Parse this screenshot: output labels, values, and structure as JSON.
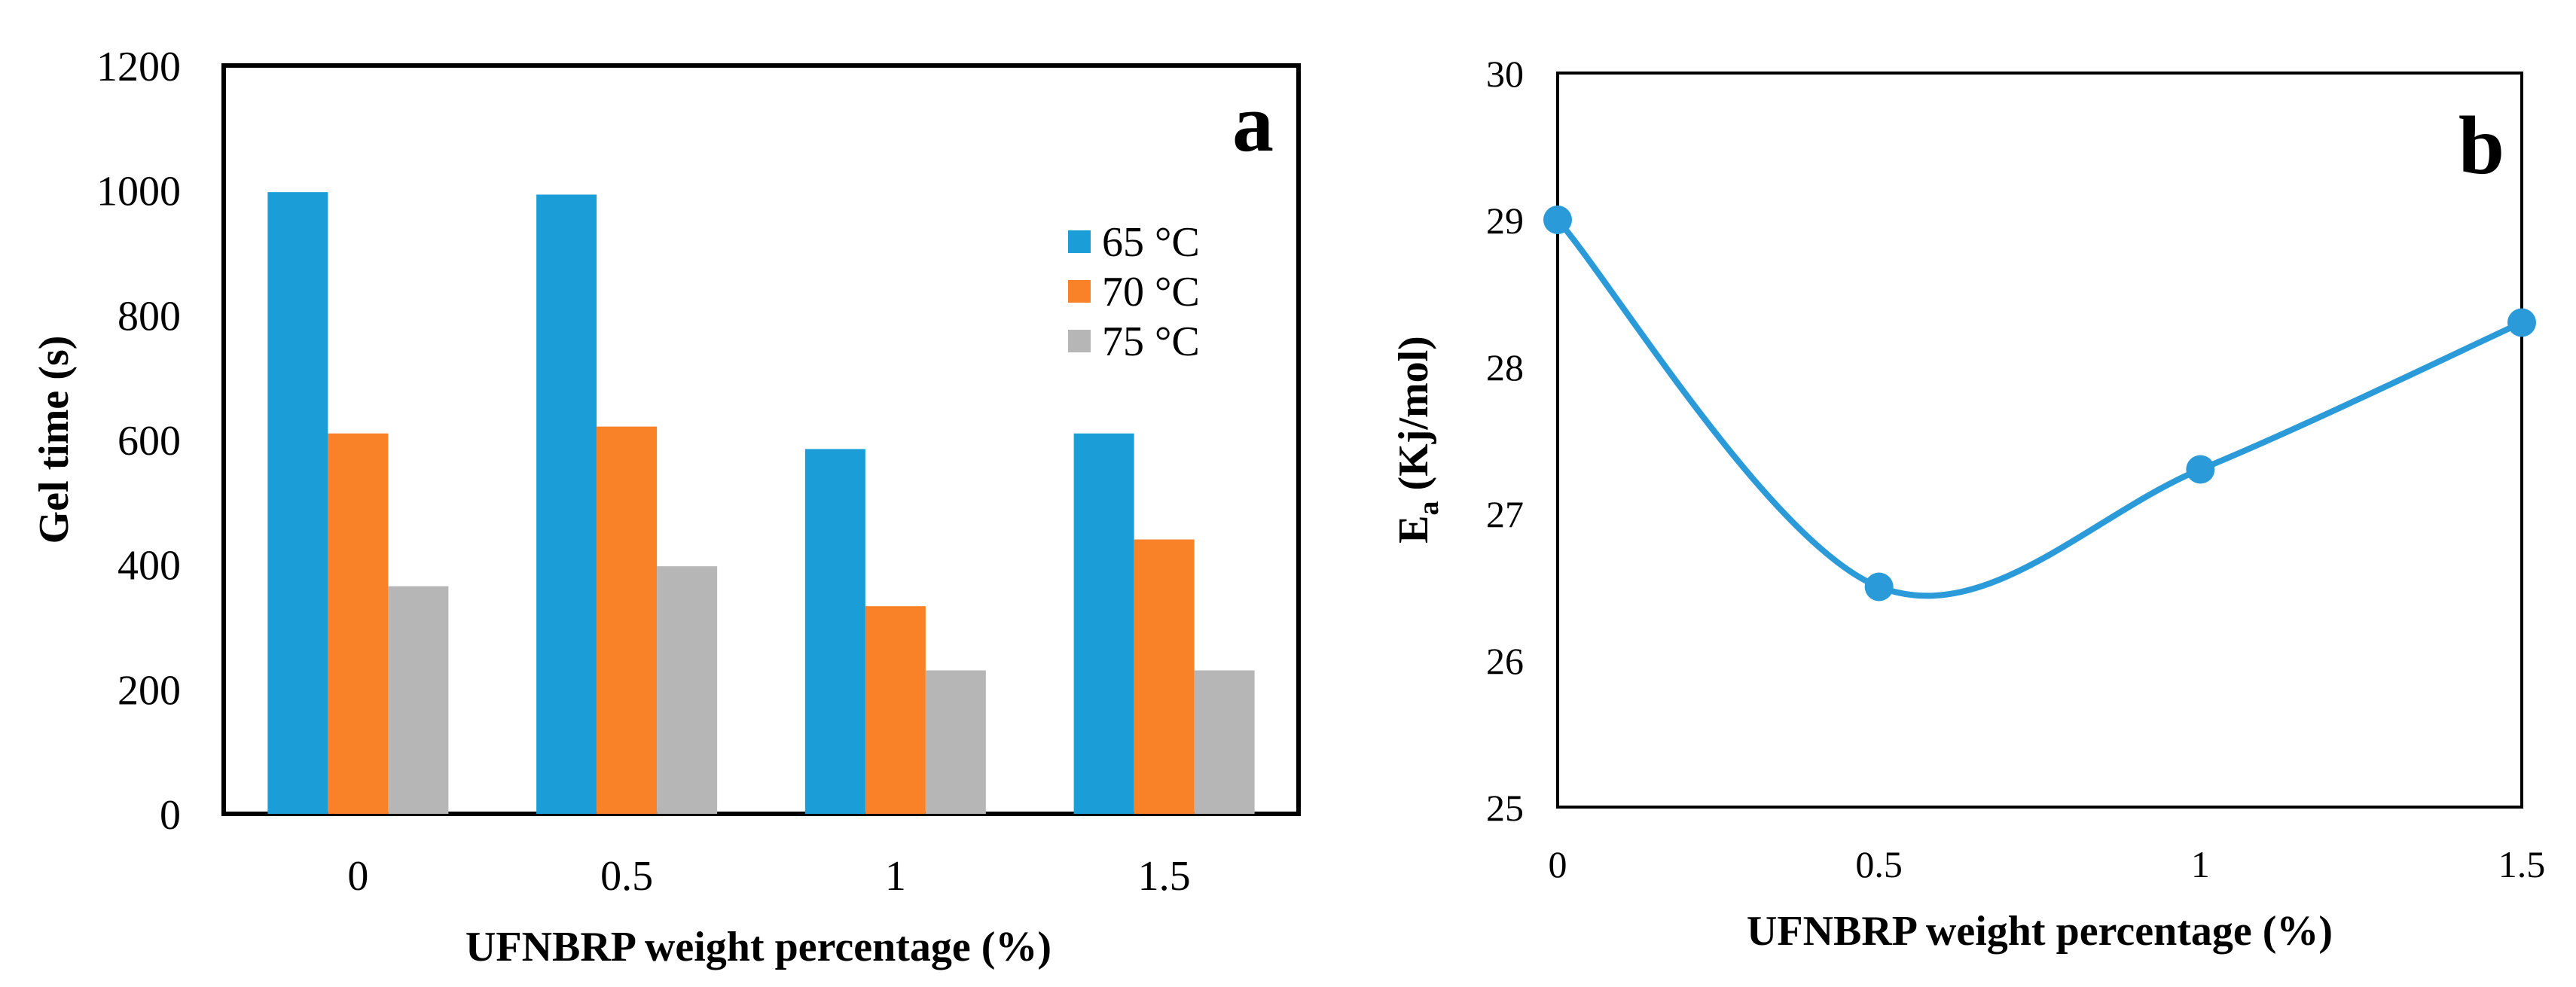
{
  "chart_data": [
    {
      "type": "bar",
      "panel_label": "a",
      "xlabel": "UFNBRP weight percentage (%)",
      "ylabel": "Gel time (s)",
      "ylim": [
        0,
        1200
      ],
      "yticks": [
        "0",
        "200",
        "400",
        "600",
        "800",
        "1000",
        "1200"
      ],
      "categories": [
        "0",
        "0.5",
        "1",
        "1.5"
      ],
      "legend_position": "top-right",
      "series": [
        {
          "name": "65 °C",
          "color": "#1b9ed8",
          "values": [
            997,
            993,
            585,
            610
          ]
        },
        {
          "name": "70 °C",
          "color": "#f98127",
          "values": [
            610,
            621,
            333,
            440
          ]
        },
        {
          "name": "75 °C",
          "color": "#b6b6b6",
          "values": [
            365,
            397,
            230,
            230
          ]
        }
      ]
    },
    {
      "type": "line",
      "panel_label": "b",
      "xlabel": "UFNBRP weight percentage (%)",
      "ylabel_main": "E",
      "ylabel_sub": "a",
      "ylabel_rest": " (Kj/mol)",
      "xlim": [
        0,
        1.5
      ],
      "ylim": [
        25,
        30
      ],
      "xticks": [
        "0",
        "0.5",
        "1",
        "1.5"
      ],
      "yticks": [
        "25",
        "26",
        "27",
        "28",
        "29",
        "30"
      ],
      "series": [
        {
          "name": "Ea",
          "color": "#2a9bd8",
          "x": [
            0,
            0.5,
            1,
            1.5
          ],
          "y": [
            29.0,
            26.5,
            27.3,
            28.3
          ]
        }
      ]
    }
  ]
}
